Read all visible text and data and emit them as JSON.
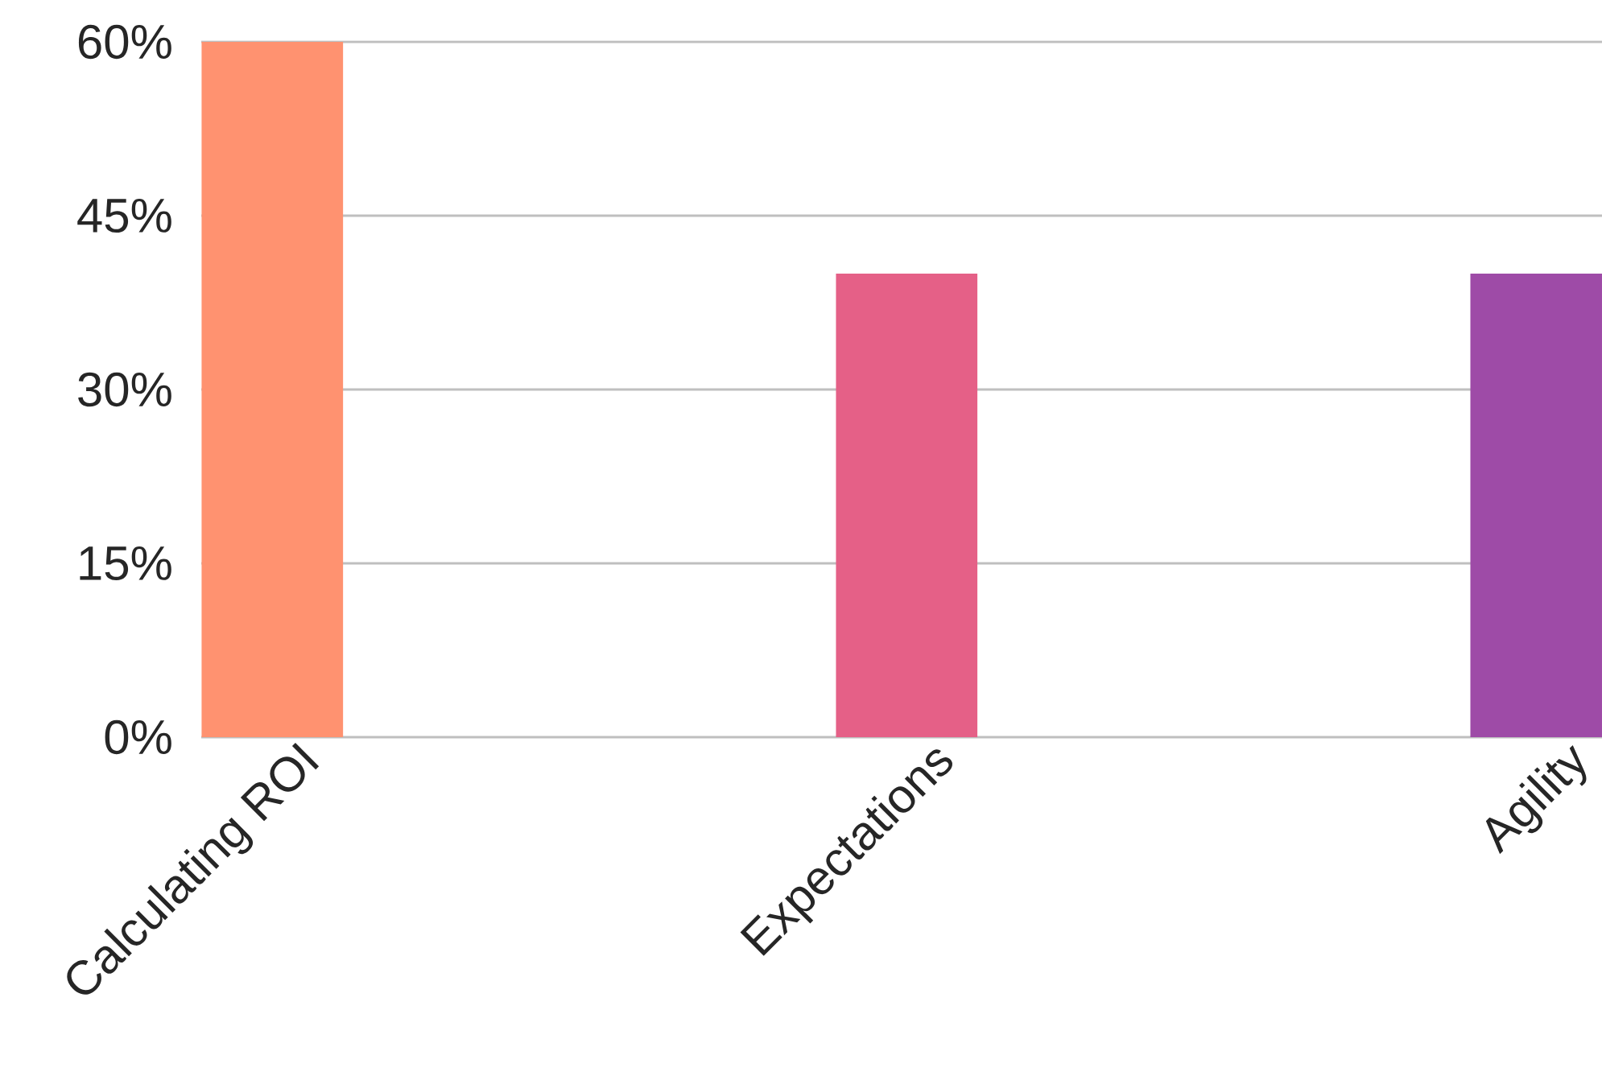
{
  "chart_data": {
    "type": "bar",
    "categories": [
      "Calculating ROI",
      "Expectations",
      "Agility"
    ],
    "values": [
      60,
      40,
      40
    ],
    "colors": [
      "#ff9270",
      "#e56087",
      "#9e4ba7"
    ],
    "ylim": [
      0,
      60
    ],
    "yticks": [
      {
        "value": 0,
        "label": "0%"
      },
      {
        "value": 15,
        "label": "15%"
      },
      {
        "value": 30,
        "label": "30%"
      },
      {
        "value": 45,
        "label": "45%"
      },
      {
        "value": 60,
        "label": "60%"
      }
    ],
    "grid": "y"
  }
}
